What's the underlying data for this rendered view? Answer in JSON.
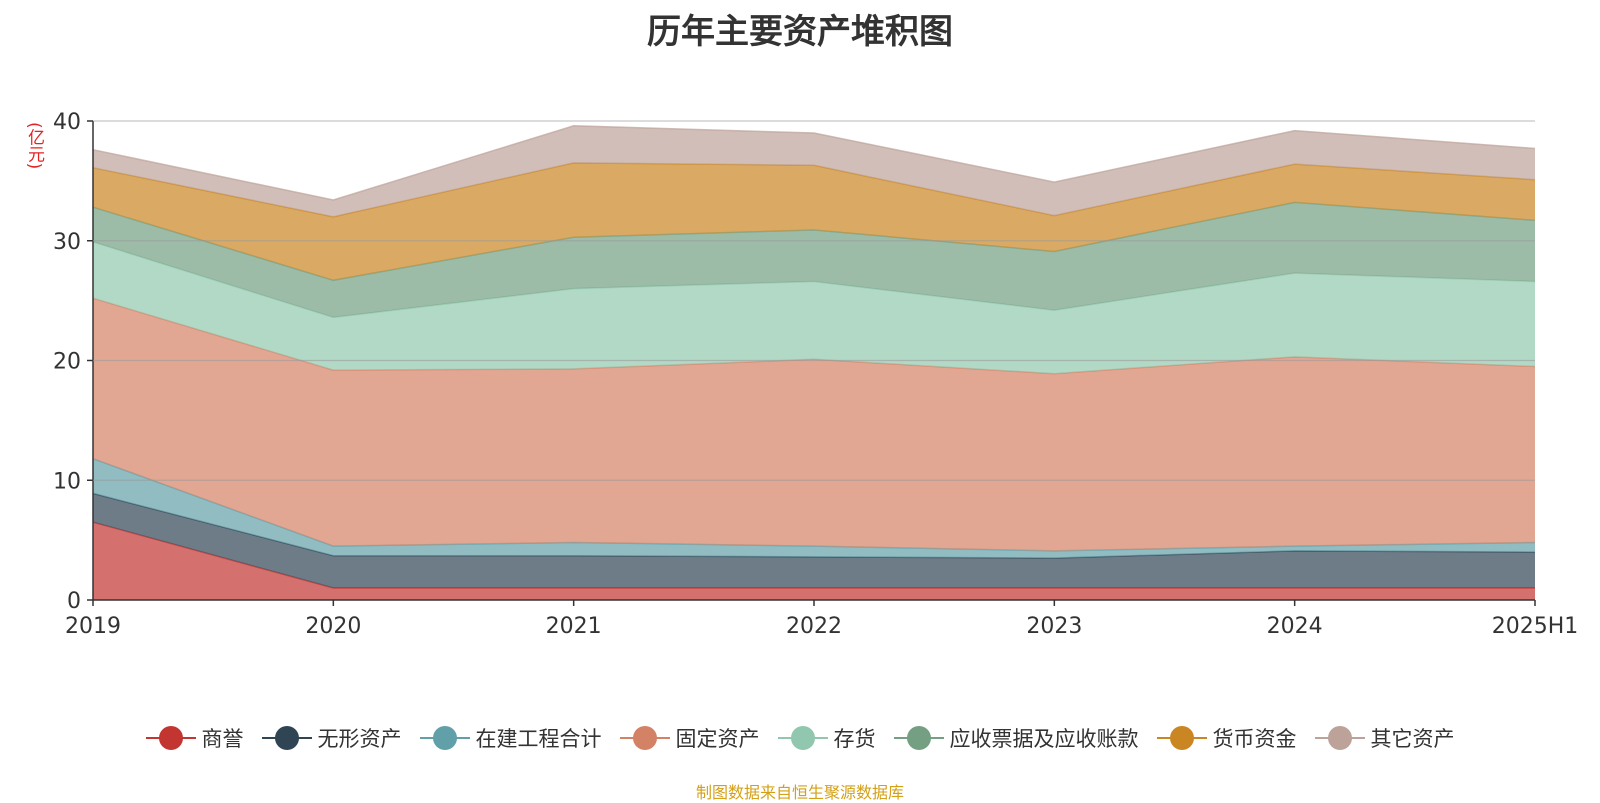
{
  "chart_data": {
    "type": "area",
    "stacked": true,
    "title": "历年主要资产堆积图",
    "unit_label": "(亿元)",
    "categories": [
      "2019",
      "2020",
      "2021",
      "2022",
      "2023",
      "2024",
      "2025H1"
    ],
    "ylim": [
      0,
      40
    ],
    "yticks": [
      "0",
      "10",
      "20",
      "30",
      "40"
    ],
    "grid": true,
    "legend_position": "bottom",
    "series": [
      {
        "name": "商誉",
        "color": "#c23531",
        "values": [
          6.5,
          1.0,
          1.0,
          1.0,
          1.0,
          1.0,
          1.0
        ]
      },
      {
        "name": "无形资产",
        "color": "#2f4554",
        "values": [
          2.4,
          2.7,
          2.7,
          2.6,
          2.5,
          3.1,
          3.0
        ]
      },
      {
        "name": "在建工程合计",
        "color": "#61a0a8",
        "values": [
          2.9,
          0.8,
          1.1,
          0.9,
          0.6,
          0.4,
          0.8
        ]
      },
      {
        "name": "固定资产",
        "color": "#d48265",
        "values": [
          13.4,
          14.7,
          14.5,
          15.6,
          14.8,
          15.8,
          14.7
        ]
      },
      {
        "name": "存货",
        "color": "#91c7ae",
        "values": [
          4.7,
          4.4,
          6.7,
          6.5,
          5.3,
          7.0,
          7.1
        ]
      },
      {
        "name": "应收票据及应收账款",
        "color": "#749f83",
        "values": [
          2.9,
          3.1,
          4.3,
          4.3,
          4.9,
          5.9,
          5.1
        ]
      },
      {
        "name": "货币资金",
        "color": "#ca8622",
        "values": [
          3.3,
          5.3,
          6.2,
          5.4,
          3.0,
          3.2,
          3.4
        ]
      },
      {
        "name": "其它资产",
        "color": "#bda29a",
        "values": [
          1.5,
          1.4,
          3.1,
          2.7,
          2.8,
          2.8,
          2.6
        ]
      }
    ]
  },
  "source_note": "制图数据来自恒生聚源数据库"
}
